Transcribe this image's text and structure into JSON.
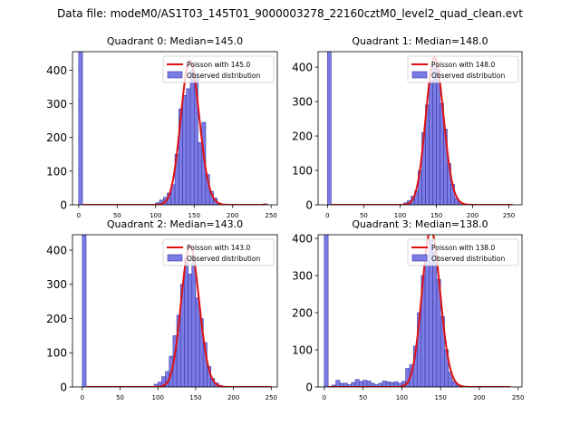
{
  "suptitle": "Data file: modeM0/AS1T03_145T01_9000003278_22160cztM0_level2_quad_clean.evt",
  "legend": {
    "model_prefix": "Poisson with ",
    "observed": "Observed distribution"
  },
  "colors": {
    "bar_fill": "#7b7be6",
    "bar_edge": "#3a3aa0",
    "line": "#e01010"
  },
  "chart_data": [
    {
      "type": "bar",
      "title": "Quadrant 0: Median=145.0",
      "median_label": "145.0",
      "lambda": 145,
      "xlim": [
        -8,
        258
      ],
      "ylim": [
        0,
        455
      ],
      "xticks": [
        0,
        50,
        100,
        150,
        200,
        250
      ],
      "yticks": [
        0,
        100,
        200,
        300,
        400
      ],
      "bin_width": 5,
      "bars": [
        {
          "x": 0,
          "y": 455
        },
        {
          "x": 100,
          "y": 6
        },
        {
          "x": 105,
          "y": 14
        },
        {
          "x": 110,
          "y": 22
        },
        {
          "x": 115,
          "y": 35
        },
        {
          "x": 120,
          "y": 60
        },
        {
          "x": 125,
          "y": 150
        },
        {
          "x": 130,
          "y": 285
        },
        {
          "x": 135,
          "y": 325
        },
        {
          "x": 140,
          "y": 345
        },
        {
          "x": 145,
          "y": 400
        },
        {
          "x": 150,
          "y": 390
        },
        {
          "x": 155,
          "y": 185
        },
        {
          "x": 160,
          "y": 245
        },
        {
          "x": 165,
          "y": 90
        },
        {
          "x": 170,
          "y": 40
        },
        {
          "x": 175,
          "y": 20
        },
        {
          "x": 180,
          "y": 5
        },
        {
          "x": 240,
          "y": 3
        }
      ],
      "curve_x": [
        5,
        245
      ]
    },
    {
      "type": "bar",
      "title": "Quadrant 1: Median=148.0",
      "median_label": "148.0",
      "lambda": 148,
      "xlim": [
        -13,
        268
      ],
      "ylim": [
        0,
        445
      ],
      "xticks": [
        0,
        50,
        100,
        150,
        200,
        250
      ],
      "yticks": [
        0,
        100,
        200,
        300,
        400
      ],
      "bin_width": 5,
      "bars": [
        {
          "x": 0,
          "y": 445
        },
        {
          "x": 105,
          "y": 6
        },
        {
          "x": 110,
          "y": 12
        },
        {
          "x": 115,
          "y": 25
        },
        {
          "x": 120,
          "y": 40
        },
        {
          "x": 125,
          "y": 100
        },
        {
          "x": 130,
          "y": 210
        },
        {
          "x": 135,
          "y": 290
        },
        {
          "x": 140,
          "y": 360
        },
        {
          "x": 145,
          "y": 400
        },
        {
          "x": 150,
          "y": 390
        },
        {
          "x": 155,
          "y": 295
        },
        {
          "x": 160,
          "y": 220
        },
        {
          "x": 165,
          "y": 120
        },
        {
          "x": 170,
          "y": 60
        },
        {
          "x": 175,
          "y": 20
        },
        {
          "x": 180,
          "y": 8
        }
      ],
      "curve_x": [
        5,
        255
      ]
    },
    {
      "type": "bar",
      "title": "Quadrant 2: Median=143.0",
      "median_label": "143.0",
      "lambda": 143,
      "xlim": [
        -13,
        258
      ],
      "ylim": [
        0,
        445
      ],
      "xticks": [
        0,
        50,
        100,
        150,
        200,
        250
      ],
      "yticks": [
        0,
        100,
        200,
        300,
        400
      ],
      "bin_width": 5,
      "bars": [
        {
          "x": 0,
          "y": 445
        },
        {
          "x": 95,
          "y": 8
        },
        {
          "x": 100,
          "y": 14
        },
        {
          "x": 105,
          "y": 30
        },
        {
          "x": 110,
          "y": 45
        },
        {
          "x": 115,
          "y": 90
        },
        {
          "x": 120,
          "y": 150
        },
        {
          "x": 125,
          "y": 210
        },
        {
          "x": 130,
          "y": 300
        },
        {
          "x": 135,
          "y": 375
        },
        {
          "x": 140,
          "y": 330
        },
        {
          "x": 145,
          "y": 385
        },
        {
          "x": 150,
          "y": 260
        },
        {
          "x": 155,
          "y": 200
        },
        {
          "x": 160,
          "y": 130
        },
        {
          "x": 165,
          "y": 60
        },
        {
          "x": 170,
          "y": 25
        },
        {
          "x": 175,
          "y": 12
        },
        {
          "x": 180,
          "y": 5
        }
      ],
      "curve_x": [
        5,
        250
      ]
    },
    {
      "type": "bar",
      "title": "Quadrant 3: Median=138.0",
      "median_label": "138.0",
      "lambda": 138,
      "xlim": [
        -8,
        255
      ],
      "ylim": [
        0,
        410
      ],
      "xticks": [
        0,
        50,
        100,
        150,
        200,
        250
      ],
      "yticks": [
        0,
        100,
        200,
        300,
        400
      ],
      "bin_width": 5,
      "bars": [
        {
          "x": 0,
          "y": 410
        },
        {
          "x": 10,
          "y": 5
        },
        {
          "x": 15,
          "y": 18
        },
        {
          "x": 20,
          "y": 10
        },
        {
          "x": 25,
          "y": 10
        },
        {
          "x": 30,
          "y": 6
        },
        {
          "x": 35,
          "y": 12
        },
        {
          "x": 40,
          "y": 20
        },
        {
          "x": 45,
          "y": 15
        },
        {
          "x": 50,
          "y": 18
        },
        {
          "x": 55,
          "y": 16
        },
        {
          "x": 60,
          "y": 10
        },
        {
          "x": 65,
          "y": 6
        },
        {
          "x": 70,
          "y": 10
        },
        {
          "x": 75,
          "y": 16
        },
        {
          "x": 80,
          "y": 14
        },
        {
          "x": 85,
          "y": 12
        },
        {
          "x": 90,
          "y": 14
        },
        {
          "x": 95,
          "y": 10
        },
        {
          "x": 100,
          "y": 15
        },
        {
          "x": 105,
          "y": 50
        },
        {
          "x": 110,
          "y": 60
        },
        {
          "x": 115,
          "y": 110
        },
        {
          "x": 120,
          "y": 200
        },
        {
          "x": 125,
          "y": 300
        },
        {
          "x": 130,
          "y": 355
        },
        {
          "x": 135,
          "y": 395
        },
        {
          "x": 140,
          "y": 365
        },
        {
          "x": 145,
          "y": 290
        },
        {
          "x": 150,
          "y": 190
        },
        {
          "x": 155,
          "y": 100
        },
        {
          "x": 160,
          "y": 40
        },
        {
          "x": 165,
          "y": 15
        },
        {
          "x": 170,
          "y": 5
        }
      ],
      "curve_x": [
        5,
        240
      ]
    }
  ]
}
